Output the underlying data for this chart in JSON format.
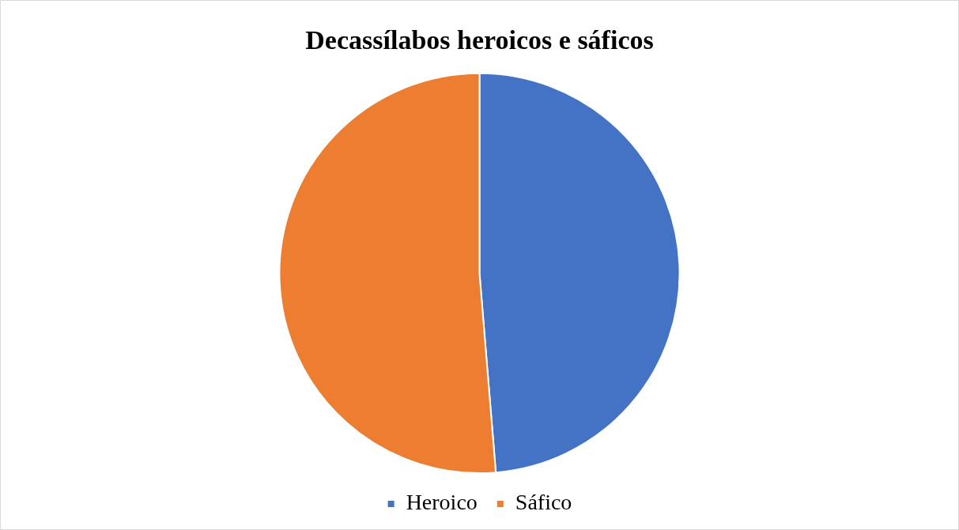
{
  "chart_data": {
    "type": "pie",
    "title": "Decassílabos heroicos e sáficos",
    "categories": [
      "Heroico",
      "Sáfico"
    ],
    "values": [
      48.7,
      51.3
    ],
    "colors": [
      "#4472c4",
      "#ed7d31"
    ],
    "legend": "bottom"
  }
}
